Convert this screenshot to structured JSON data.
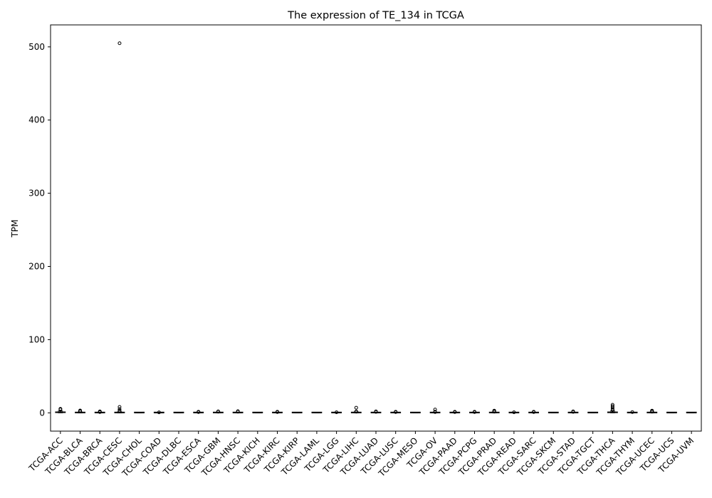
{
  "chart_data": {
    "type": "boxplot",
    "title": "The expression of TE_134 in TCGA",
    "xlabel": "",
    "ylabel": "TPM",
    "ylim": [
      -25,
      530
    ],
    "yticks": [
      0,
      100,
      200,
      300,
      400,
      500
    ],
    "categories": [
      "TCGA-ACC",
      "TCGA-BLCA",
      "TCGA-BRCA",
      "TCGA-CESC",
      "TCGA-CHOL",
      "TCGA-COAD",
      "TCGA-DLBC",
      "TCGA-ESCA",
      "TCGA-GBM",
      "TCGA-HNSC",
      "TCGA-KICH",
      "TCGA-KIRC",
      "TCGA-KIRP",
      "TCGA-LAML",
      "TCGA-LGG",
      "TCGA-LIHC",
      "TCGA-LUAD",
      "TCGA-LUSC",
      "TCGA-MESO",
      "TCGA-OV",
      "TCGA-PAAD",
      "TCGA-PCPG",
      "TCGA-PRAD",
      "TCGA-READ",
      "TCGA-SARC",
      "TCGA-SKCM",
      "TCGA-STAD",
      "TCGA-TGCT",
      "TCGA-THCA",
      "TCGA-THYM",
      "TCGA-UCEC",
      "TCGA-UCS",
      "TCGA-UVM"
    ],
    "boxes": [
      {
        "q1": 0.3,
        "median": 0.7,
        "q3": 1.2,
        "whisker_low": 0,
        "whisker_high": 2.5,
        "outliers": [
          4.5,
          5.5
        ]
      },
      {
        "q1": 0,
        "median": 0.2,
        "q3": 0.5,
        "whisker_low": 0,
        "whisker_high": 1.2,
        "outliers": [
          1.8,
          2.5,
          3.2
        ]
      },
      {
        "q1": 0,
        "median": 0.1,
        "q3": 0.3,
        "whisker_low": 0,
        "whisker_high": 0.7,
        "outliers": [
          1,
          1.5,
          2
        ]
      },
      {
        "q1": 0,
        "median": 0.2,
        "q3": 0.6,
        "whisker_low": 0,
        "whisker_high": 1.3,
        "outliers": [
          505,
          8,
          5,
          3,
          2
        ]
      },
      {
        "q1": 0,
        "median": 0,
        "q3": 0.1,
        "whisker_low": 0,
        "whisker_high": 0.2,
        "outliers": []
      },
      {
        "q1": 0,
        "median": 0,
        "q3": 0.1,
        "whisker_low": 0,
        "whisker_high": 0.2,
        "outliers": [
          0.6
        ]
      },
      {
        "q1": 0,
        "median": 0,
        "q3": 0.1,
        "whisker_low": 0,
        "whisker_high": 0.2,
        "outliers": []
      },
      {
        "q1": 0,
        "median": 0.1,
        "q3": 0.3,
        "whisker_low": 0,
        "whisker_high": 0.6,
        "outliers": [
          1,
          1.5
        ]
      },
      {
        "q1": 0,
        "median": 0.2,
        "q3": 0.5,
        "whisker_low": 0,
        "whisker_high": 1,
        "outliers": [
          1.5,
          2
        ]
      },
      {
        "q1": 0,
        "median": 0.1,
        "q3": 0.4,
        "whisker_low": 0,
        "whisker_high": 0.8,
        "outliers": [
          1.5,
          2.2
        ]
      },
      {
        "q1": 0,
        "median": 0,
        "q3": 0.1,
        "whisker_low": 0,
        "whisker_high": 0.2,
        "outliers": []
      },
      {
        "q1": 0,
        "median": 0.1,
        "q3": 0.3,
        "whisker_low": 0,
        "whisker_high": 0.6,
        "outliers": [
          1,
          1.5
        ]
      },
      {
        "q1": 0,
        "median": 0,
        "q3": 0.1,
        "whisker_low": 0,
        "whisker_high": 0.2,
        "outliers": []
      },
      {
        "q1": 0,
        "median": 0,
        "q3": 0.1,
        "whisker_low": 0,
        "whisker_high": 0.2,
        "outliers": []
      },
      {
        "q1": 0,
        "median": 0.1,
        "q3": 0.2,
        "whisker_low": 0,
        "whisker_high": 0.4,
        "outliers": [
          0.8
        ]
      },
      {
        "q1": 0,
        "median": 0.2,
        "q3": 0.6,
        "whisker_low": 0,
        "whisker_high": 1.2,
        "outliers": [
          7,
          2,
          1.5
        ]
      },
      {
        "q1": 0,
        "median": 0.1,
        "q3": 0.4,
        "whisker_low": 0,
        "whisker_high": 0.8,
        "outliers": [
          1.3,
          2
        ]
      },
      {
        "q1": 0,
        "median": 0.1,
        "q3": 0.3,
        "whisker_low": 0,
        "whisker_high": 0.6,
        "outliers": [
          1,
          1.5
        ]
      },
      {
        "q1": 0,
        "median": 0,
        "q3": 0.1,
        "whisker_low": 0,
        "whisker_high": 0.2,
        "outliers": []
      },
      {
        "q1": 0,
        "median": 0.1,
        "q3": 0.3,
        "whisker_low": 0,
        "whisker_high": 0.6,
        "outliers": [
          4.5,
          1.5,
          1
        ]
      },
      {
        "q1": 0,
        "median": 0.1,
        "q3": 0.3,
        "whisker_low": 0,
        "whisker_high": 0.6,
        "outliers": [
          1,
          1.5
        ]
      },
      {
        "q1": 0,
        "median": 0.1,
        "q3": 0.3,
        "whisker_low": 0,
        "whisker_high": 0.6,
        "outliers": [
          1,
          1.5
        ]
      },
      {
        "q1": 0,
        "median": 0.2,
        "q3": 0.5,
        "whisker_low": 0,
        "whisker_high": 1,
        "outliers": [
          3,
          2.5,
          1.5
        ]
      },
      {
        "q1": 0,
        "median": 0,
        "q3": 0.1,
        "whisker_low": 0,
        "whisker_high": 0.2,
        "outliers": [
          0.8
        ]
      },
      {
        "q1": 0,
        "median": 0.1,
        "q3": 0.3,
        "whisker_low": 0,
        "whisker_high": 0.6,
        "outliers": [
          1,
          1.5
        ]
      },
      {
        "q1": 0,
        "median": 0,
        "q3": 0.1,
        "whisker_low": 0,
        "whisker_high": 0.2,
        "outliers": []
      },
      {
        "q1": 0,
        "median": 0.1,
        "q3": 0.4,
        "whisker_low": 0,
        "whisker_high": 0.8,
        "outliers": [
          1.3,
          2
        ]
      },
      {
        "q1": 0,
        "median": 0,
        "q3": 0.1,
        "whisker_low": 0,
        "whisker_high": 0.2,
        "outliers": []
      },
      {
        "q1": 0.2,
        "median": 0.6,
        "q3": 1.2,
        "whisker_low": 0,
        "whisker_high": 2.5,
        "outliers": [
          11,
          9,
          7,
          5,
          4
        ]
      },
      {
        "q1": 0,
        "median": 0.1,
        "q3": 0.3,
        "whisker_low": 0,
        "whisker_high": 0.6,
        "outliers": [
          1
        ]
      },
      {
        "q1": 0,
        "median": 0.2,
        "q3": 0.5,
        "whisker_low": 0,
        "whisker_high": 1,
        "outliers": [
          1.5,
          2.2,
          3
        ]
      },
      {
        "q1": 0,
        "median": 0,
        "q3": 0.1,
        "whisker_low": 0,
        "whisker_high": 0.2,
        "outliers": []
      },
      {
        "q1": 0,
        "median": 0,
        "q3": 0.1,
        "whisker_low": 0,
        "whisker_high": 0.2,
        "outliers": []
      }
    ],
    "grid": false,
    "legend": "none",
    "colors": {
      "box_edge": "#000000",
      "median": "#000000",
      "outlier": "#000000",
      "background": "#ffffff"
    }
  }
}
